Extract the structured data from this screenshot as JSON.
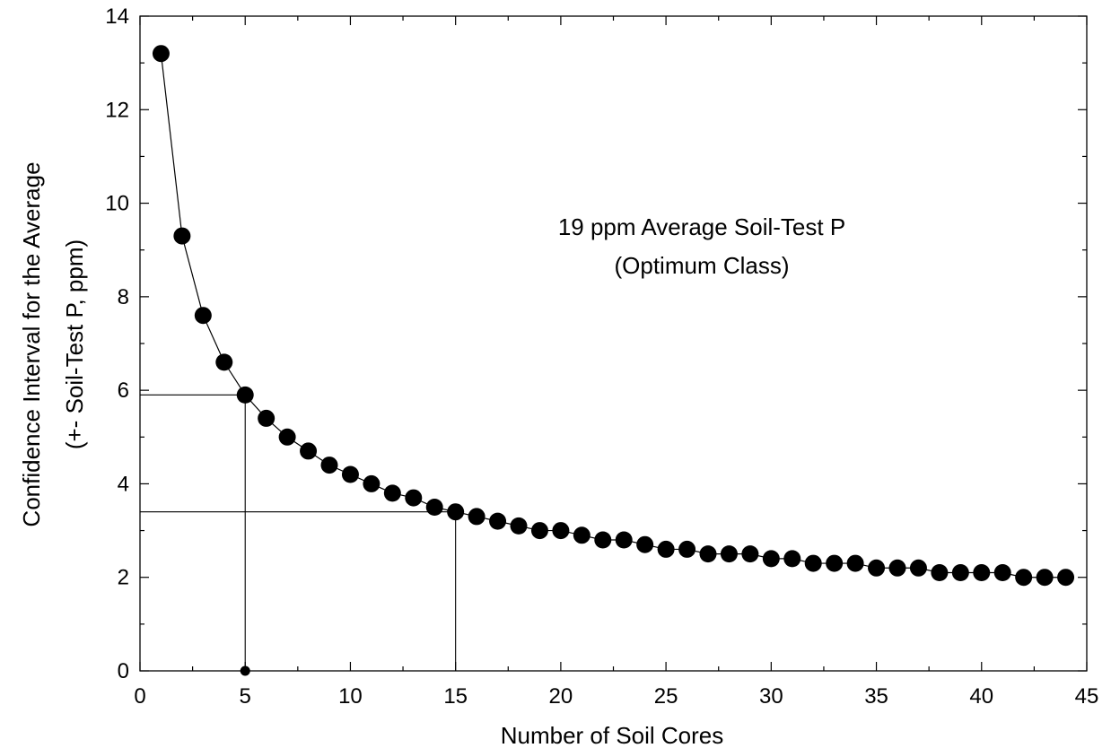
{
  "chart_data": {
    "type": "scatter",
    "xlabel": "Number of Soil Cores",
    "ylabel": "Confidence Interval for the Average",
    "ylabel_line2": "(+- Soil-Test P, ppm)",
    "annotation_line1": "19 ppm Average Soil-Test P",
    "annotation_line2": "(Optimum Class)",
    "xlim": [
      0,
      45
    ],
    "ylim": [
      0,
      14
    ],
    "xticks": [
      0,
      5,
      10,
      15,
      20,
      25,
      30,
      35,
      40,
      45
    ],
    "yticks": [
      0,
      2,
      4,
      6,
      8,
      10,
      12,
      14
    ],
    "grid": false,
    "series": [
      {
        "marker": "filled-circle",
        "line": true,
        "color": "#000000",
        "x": [
          1,
          2,
          3,
          4,
          5,
          6,
          7,
          8,
          9,
          10,
          11,
          12,
          13,
          14,
          15,
          16,
          17,
          18,
          19,
          20,
          21,
          22,
          23,
          24,
          25,
          26,
          27,
          28,
          29,
          30,
          31,
          32,
          33,
          34,
          35,
          36,
          37,
          38,
          39,
          40,
          41,
          42,
          43,
          44
        ],
        "y": [
          13.2,
          9.3,
          7.6,
          6.6,
          5.9,
          5.4,
          5.0,
          4.7,
          4.4,
          4.2,
          4.0,
          3.8,
          3.7,
          3.5,
          3.4,
          3.3,
          3.2,
          3.1,
          3.0,
          3.0,
          2.9,
          2.8,
          2.8,
          2.7,
          2.6,
          2.6,
          2.5,
          2.5,
          2.5,
          2.4,
          2.4,
          2.3,
          2.3,
          2.3,
          2.2,
          2.2,
          2.2,
          2.1,
          2.1,
          2.1,
          2.1,
          2.0,
          2.0,
          2.0
        ]
      }
    ],
    "reference_lines": [
      {
        "x": 5,
        "y": 5.9
      },
      {
        "x": 15,
        "y": 3.4
      }
    ],
    "reference_point": {
      "x": 5,
      "y": 0
    }
  }
}
